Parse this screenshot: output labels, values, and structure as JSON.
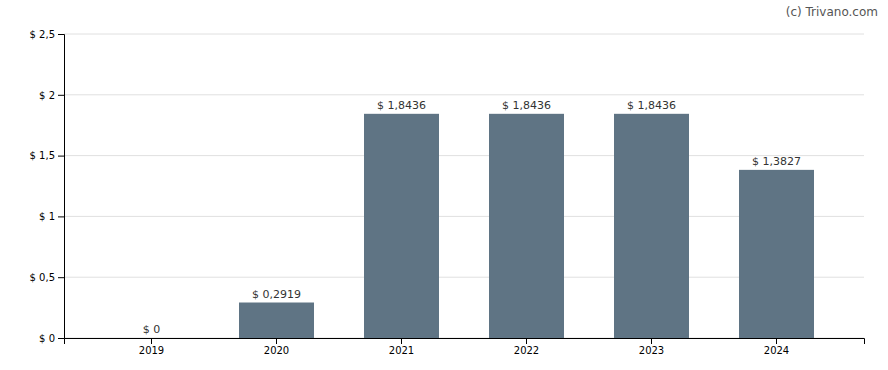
{
  "chart_data": {
    "type": "bar",
    "categories": [
      "2019",
      "2020",
      "2021",
      "2022",
      "2023",
      "2024"
    ],
    "values": [
      0.0,
      0.2919,
      1.8436,
      1.8436,
      1.8436,
      1.3827
    ],
    "value_labels": [
      "$ 0",
      "$ 0,2919",
      "$ 1,8436",
      "$ 1,8436",
      "$ 1,8436",
      "$ 1,3827"
    ],
    "data_labels": true,
    "color": "#5f7484",
    "ylim": [
      0,
      2.5
    ],
    "yticks": [
      {
        "value": 0,
        "label": "$ 0"
      },
      {
        "value": 0.5,
        "label": "$ 0,5"
      },
      {
        "value": 1.0,
        "label": "$ 1"
      },
      {
        "value": 1.5,
        "label": "$ 1,5"
      },
      {
        "value": 2.0,
        "label": "$ 2"
      },
      {
        "value": 2.5,
        "label": "$ 2,5"
      }
    ],
    "grid": true,
    "annotations": [
      "(c) Trivano.com"
    ]
  }
}
